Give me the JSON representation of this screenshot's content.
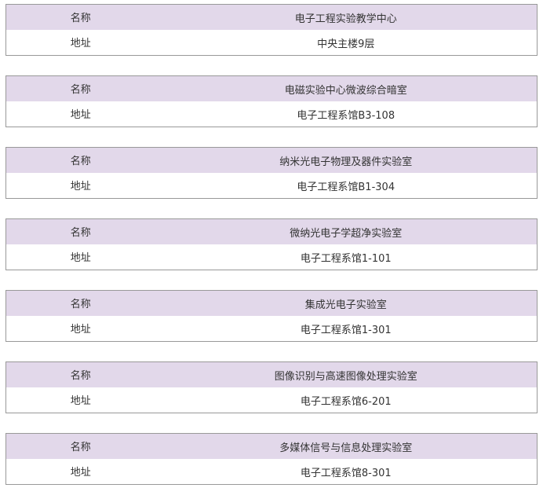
{
  "labels": {
    "name": "名称",
    "address": "地址"
  },
  "labs": [
    {
      "name": "电子工程实验教学中心",
      "address": "中央主楼9层"
    },
    {
      "name": "电磁实验中心微波综合暗室",
      "address": "电子工程系馆B3-108"
    },
    {
      "name": "纳米光电子物理及器件实验室",
      "address": "电子工程系馆B1-304"
    },
    {
      "name": "微纳光电子学超净实验室",
      "address": "电子工程系馆1-101"
    },
    {
      "name": "集成光电子实验室",
      "address": "电子工程系馆1-301"
    },
    {
      "name": "图像识别与高速图像处理实验室",
      "address": "电子工程系馆6-201"
    },
    {
      "name": "多媒体信号与信息处理实验室",
      "address": "电子工程系馆8-301"
    }
  ]
}
